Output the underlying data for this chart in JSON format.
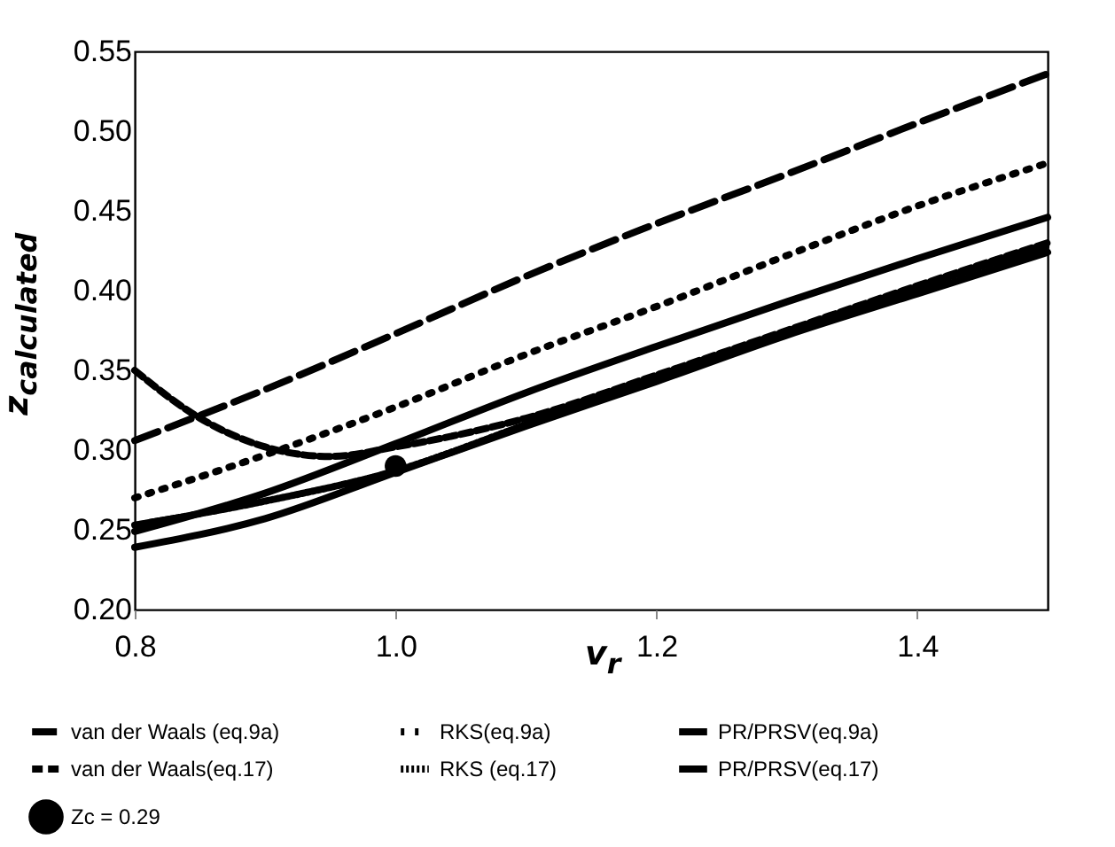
{
  "chart_data": {
    "type": "line",
    "xlabel": "v$_{r}$",
    "ylabel": "z$_{calculated}$",
    "x": [
      0.8,
      0.9,
      1.0,
      1.1,
      1.2,
      1.3,
      1.4,
      1.5
    ],
    "xlim": [
      0.8,
      1.5
    ],
    "xticks": [
      {
        "value": 0.8,
        "label": "0.8"
      },
      {
        "value": 1.0,
        "label": "1.0"
      },
      {
        "value": 1.2,
        "label": "1.2"
      },
      {
        "value": 1.4,
        "label": "1.4"
      }
    ],
    "ylim": [
      0.2,
      0.55
    ],
    "yticks": [
      {
        "value": 0.2,
        "label": "0.20"
      },
      {
        "value": 0.25,
        "label": "0.25"
      },
      {
        "value": 0.3,
        "label": "0.30"
      },
      {
        "value": 0.35,
        "label": "0.35"
      },
      {
        "value": 0.4,
        "label": "0.40"
      },
      {
        "value": 0.45,
        "label": "0.45"
      },
      {
        "value": 0.5,
        "label": "0.50"
      },
      {
        "value": 0.55,
        "label": "0.55"
      }
    ],
    "grid": false,
    "legend": "bottom",
    "series": [
      {
        "name": "van der Waals (eq.9a)",
        "color": "#000000",
        "line_style": "dashed",
        "values": [
          0.306,
          0.338,
          0.373,
          0.409,
          0.442,
          0.473,
          0.505,
          0.536
        ]
      },
      {
        "name": "RKS(eq.9a)",
        "color": "#000000",
        "line_style": "dotted",
        "values": [
          0.27,
          0.297,
          0.327,
          0.36,
          0.39,
          0.422,
          0.453,
          0.48
        ]
      },
      {
        "name": "PR/PRSV(eq.9a)",
        "color": "#000000",
        "line_style": "solid",
        "values": [
          0.249,
          0.273,
          0.304,
          0.336,
          0.365,
          0.393,
          0.42,
          0.446
        ]
      },
      {
        "name": "van der Waals(eq.17)",
        "color": "#000000",
        "line_style": "dashed",
        "x": [
          0.8,
          0.85,
          0.9,
          0.95,
          1.0,
          1.1,
          1.2,
          1.3,
          1.4,
          1.5
        ],
        "values": [
          0.35,
          0.32,
          0.302,
          0.296,
          0.302,
          0.32,
          0.347,
          0.375,
          0.403,
          0.43
        ]
      },
      {
        "name": "RKS (eq.17)",
        "color": "#000000",
        "line_style": "dotted",
        "values": [
          0.253,
          0.268,
          0.287,
          0.316,
          0.346,
          0.374,
          0.402,
          0.428
        ]
      },
      {
        "name": "PR/PRSV(eq.17)",
        "color": "#000000",
        "line_style": "solid",
        "values": [
          0.239,
          0.257,
          0.286,
          0.315,
          0.343,
          0.372,
          0.398,
          0.424
        ]
      },
      {
        "name": "Zc = 0.29",
        "color": "#000000",
        "type": "scatter",
        "marker": "circle",
        "x": [
          1.0
        ],
        "values": [
          0.29
        ]
      }
    ]
  }
}
